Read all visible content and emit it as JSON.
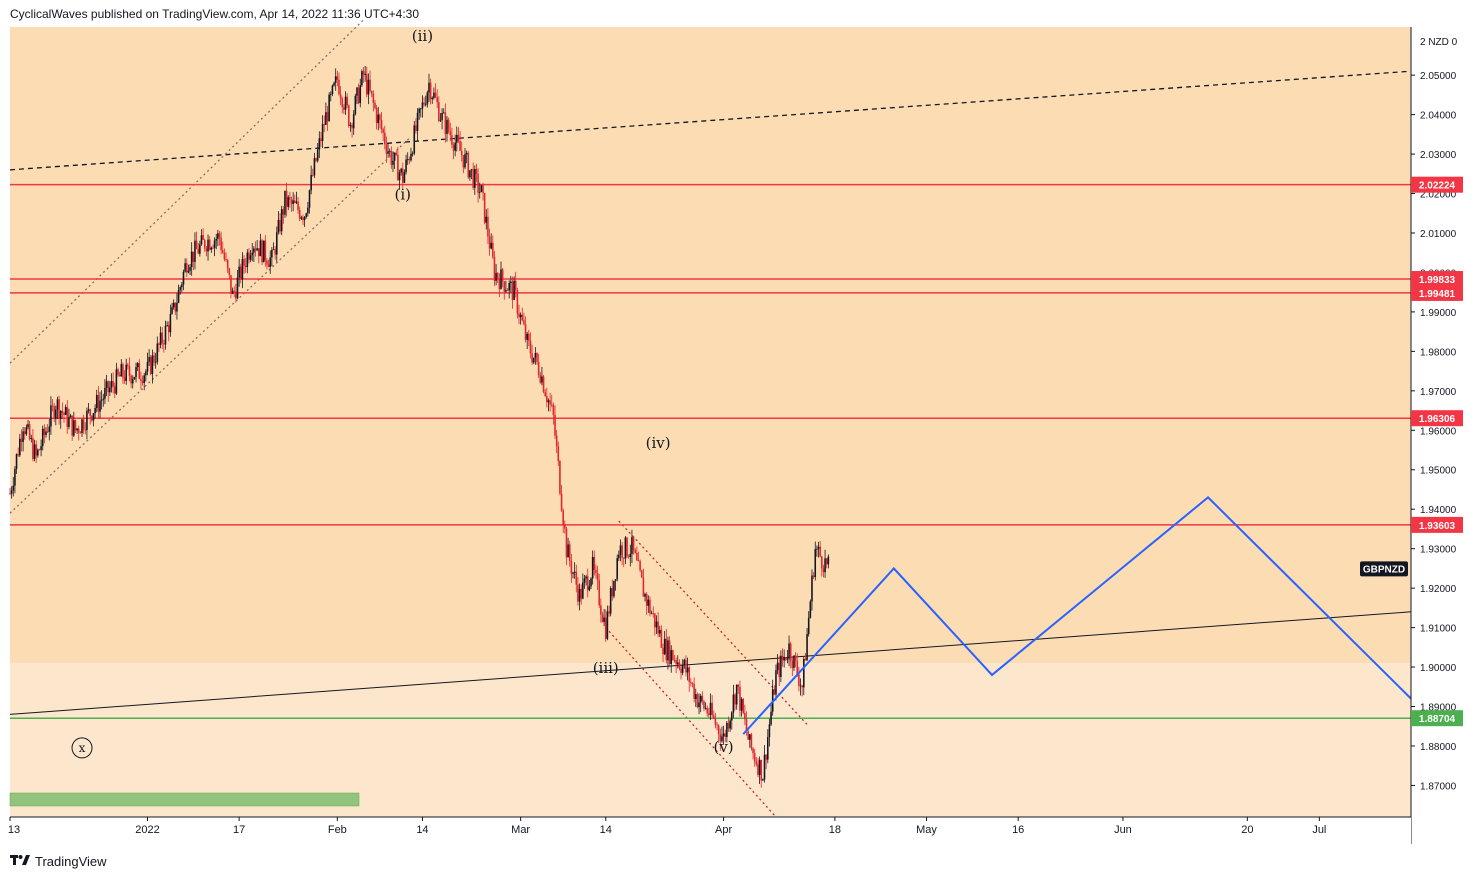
{
  "header": {
    "published_text": "CyclicalWaves published on TradingView.com, Apr 14, 2022 11:36 UTC+4:30"
  },
  "footer": {
    "brand": "TradingView",
    "logo_icon": "tradingview-logo-icon"
  },
  "colors": {
    "plot_bg_upper": "#fcdcb3",
    "plot_bg_lower": "#fce6cc",
    "candle_up": "#131722",
    "candle_down": "#e0262e",
    "resistance": "#f23645",
    "support": "#4caf50",
    "projection": "#2962ff",
    "axis_text": "#131722"
  },
  "chart_data": {
    "type": "candlestick",
    "symbol": "GBPNZD",
    "axis_unit_label": "2 NZD 0",
    "y_range": [
      1.862,
      2.0622
    ],
    "x_range": [
      "2021-12-13",
      "2022-07-15"
    ],
    "y_ticks": [
      "1.87000",
      "1.88000",
      "1.89000",
      "1.90000",
      "1.91000",
      "1.92000",
      "1.93000",
      "1.94000",
      "1.95000",
      "1.96000",
      "1.97000",
      "1.98000",
      "1.99000",
      "2.00000",
      "2.01000",
      "2.02000",
      "2.03000",
      "2.04000",
      "2.05000"
    ],
    "x_ticks": [
      {
        "label": "13",
        "date": "2021-12-13"
      },
      {
        "label": "2022",
        "date": "2022-01-03"
      },
      {
        "label": "17",
        "date": "2022-01-17"
      },
      {
        "label": "Feb",
        "date": "2022-02-01"
      },
      {
        "label": "14",
        "date": "2022-02-14"
      },
      {
        "label": "Mar",
        "date": "2022-03-01"
      },
      {
        "label": "14",
        "date": "2022-03-14"
      },
      {
        "label": "Apr",
        "date": "2022-04-01"
      },
      {
        "label": "18",
        "date": "2022-04-18"
      },
      {
        "label": "May",
        "date": "2022-05-02"
      },
      {
        "label": "16",
        "date": "2022-05-16"
      },
      {
        "label": "Jun",
        "date": "2022-06-01"
      },
      {
        "label": "20",
        "date": "2022-06-20"
      },
      {
        "label": "Jul",
        "date": "2022-07-01"
      }
    ],
    "horizontal_levels": [
      {
        "value": 2.02224,
        "label": "2.02224",
        "kind": "resistance"
      },
      {
        "value": 1.99833,
        "label": "1.99833",
        "kind": "resistance"
      },
      {
        "value": 1.99481,
        "label": "1.99481",
        "kind": "resistance"
      },
      {
        "value": 1.96306,
        "label": "1.96306",
        "kind": "resistance"
      },
      {
        "value": 1.93603,
        "label": "1.93603",
        "kind": "resistance"
      },
      {
        "value": 1.88704,
        "label": "1.88704",
        "kind": "support"
      }
    ],
    "symbol_badge": {
      "label": "GBPNZD",
      "value": 1.925,
      "date": "2022-07-14"
    },
    "price_path": [
      {
        "date": "2021-12-13",
        "price": 1.944
      },
      {
        "date": "2021-12-15",
        "price": 1.962
      },
      {
        "date": "2021-12-17",
        "price": 1.953
      },
      {
        "date": "2021-12-20",
        "price": 1.967
      },
      {
        "date": "2021-12-23",
        "price": 1.96
      },
      {
        "date": "2021-12-27",
        "price": 1.968
      },
      {
        "date": "2021-12-30",
        "price": 1.974
      },
      {
        "date": "2022-01-03",
        "price": 1.975
      },
      {
        "date": "2022-01-05",
        "price": 1.982
      },
      {
        "date": "2022-01-07",
        "price": 1.99
      },
      {
        "date": "2022-01-09",
        "price": 2.003
      },
      {
        "date": "2022-01-12",
        "price": 2.008
      },
      {
        "date": "2022-01-14",
        "price": 2.009
      },
      {
        "date": "2022-01-16",
        "price": 1.994
      },
      {
        "date": "2022-01-19",
        "price": 2.008
      },
      {
        "date": "2022-01-22",
        "price": 2.003
      },
      {
        "date": "2022-01-24",
        "price": 2.018
      },
      {
        "date": "2022-01-27",
        "price": 2.015
      },
      {
        "date": "2022-01-30",
        "price": 2.038
      },
      {
        "date": "2022-02-01",
        "price": 2.049
      },
      {
        "date": "2022-02-03",
        "price": 2.038
      },
      {
        "date": "2022-02-05",
        "price": 2.05
      },
      {
        "date": "2022-02-07",
        "price": 2.04
      },
      {
        "date": "2022-02-09",
        "price": 2.03
      },
      {
        "date": "2022-02-11",
        "price": 2.024
      },
      {
        "date": "2022-02-13",
        "price": 2.036
      },
      {
        "date": "2022-02-15",
        "price": 2.048
      },
      {
        "date": "2022-02-17",
        "price": 2.039
      },
      {
        "date": "2022-02-20",
        "price": 2.03
      },
      {
        "date": "2022-02-23",
        "price": 2.02
      },
      {
        "date": "2022-02-25",
        "price": 2.0
      },
      {
        "date": "2022-02-28",
        "price": 1.995
      },
      {
        "date": "2022-03-02",
        "price": 1.982
      },
      {
        "date": "2022-03-04",
        "price": 1.975
      },
      {
        "date": "2022-03-06",
        "price": 1.963
      },
      {
        "date": "2022-03-08",
        "price": 1.93
      },
      {
        "date": "2022-03-10",
        "price": 1.918
      },
      {
        "date": "2022-03-12",
        "price": 1.925
      },
      {
        "date": "2022-03-14",
        "price": 1.91
      },
      {
        "date": "2022-03-16",
        "price": 1.93
      },
      {
        "date": "2022-03-18",
        "price": 1.93
      },
      {
        "date": "2022-03-20",
        "price": 1.918
      },
      {
        "date": "2022-03-23",
        "price": 1.905
      },
      {
        "date": "2022-03-26",
        "price": 1.9
      },
      {
        "date": "2022-03-28",
        "price": 1.892
      },
      {
        "date": "2022-03-30",
        "price": 1.888
      },
      {
        "date": "2022-04-01",
        "price": 1.882
      },
      {
        "date": "2022-04-03",
        "price": 1.895
      },
      {
        "date": "2022-04-05",
        "price": 1.88
      },
      {
        "date": "2022-04-07",
        "price": 1.873
      },
      {
        "date": "2022-04-09",
        "price": 1.898
      },
      {
        "date": "2022-04-11",
        "price": 1.905
      },
      {
        "date": "2022-04-13",
        "price": 1.895
      },
      {
        "date": "2022-04-15",
        "price": 1.93
      },
      {
        "date": "2022-04-17",
        "price": 1.925
      }
    ],
    "projection_path": [
      {
        "date": "2022-04-04",
        "price": 1.883
      },
      {
        "date": "2022-04-27",
        "price": 1.925
      },
      {
        "date": "2022-05-12",
        "price": 1.898
      },
      {
        "date": "2022-06-14",
        "price": 1.943
      },
      {
        "date": "2022-07-15",
        "price": 1.892
      }
    ],
    "trendlines": [
      {
        "style": "solid",
        "color": "#131722",
        "from": {
          "date": "2021-12-13",
          "price": 1.888
        },
        "to": {
          "date": "2022-07-15",
          "price": 1.914
        }
      },
      {
        "style": "dashed",
        "color": "#131722",
        "from": {
          "date": "2021-12-13",
          "price": 2.026
        },
        "to": {
          "date": "2022-07-15",
          "price": 2.051
        }
      },
      {
        "style": "dotted",
        "color": "#8d6e63",
        "from": {
          "date": "2021-12-13",
          "price": 1.977
        },
        "to": {
          "date": "2022-02-05",
          "price": 2.064
        }
      },
      {
        "style": "dotted",
        "color": "#8d6e63",
        "from": {
          "date": "2021-12-13",
          "price": 1.939
        },
        "to": {
          "date": "2022-02-12",
          "price": 2.034
        }
      },
      {
        "style": "dotted",
        "color": "#c62828",
        "from": {
          "date": "2022-03-16",
          "price": 1.937
        },
        "to": {
          "date": "2022-04-14",
          "price": 1.885
        }
      },
      {
        "style": "dotted",
        "color": "#c62828",
        "from": {
          "date": "2022-03-14",
          "price": 1.91
        },
        "to": {
          "date": "2022-04-09",
          "price": 1.862
        }
      }
    ],
    "annotations": [
      {
        "text": "(ii)",
        "date": "2022-02-14",
        "price": 2.0587
      },
      {
        "text": "(i)",
        "date": "2022-02-11",
        "price": 2.0185
      },
      {
        "text": "(iv)",
        "date": "2022-03-22",
        "price": 1.9555
      },
      {
        "text": "(iii)",
        "date": "2022-03-14",
        "price": 1.8985
      },
      {
        "text": "(v)",
        "date": "2022-04-01",
        "price": 1.8785
      },
      {
        "text": "x",
        "date": "2021-12-24",
        "price": 1.8785,
        "circled": true
      }
    ],
    "shaded_zone": {
      "upper_color": "#fcdcb3",
      "lower_color": "#fce6cc"
    },
    "green_bar": {
      "color": "#93c47d"
    }
  }
}
